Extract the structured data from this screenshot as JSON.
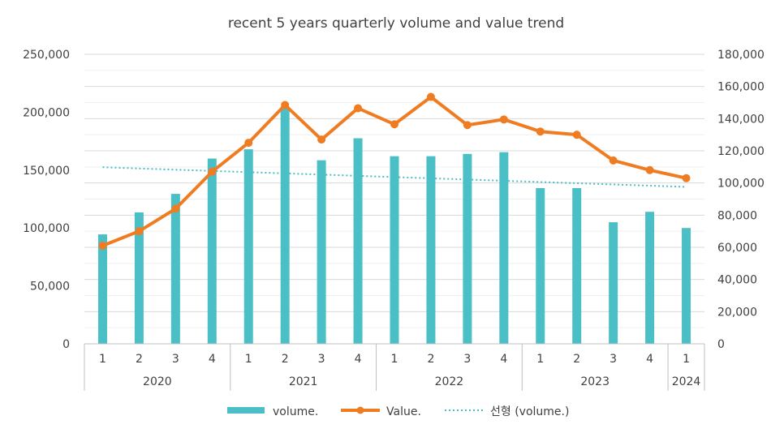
{
  "chart_data": {
    "type": "bar",
    "title": "recent 5 years quarterly volume and value trend",
    "categories": [
      "1",
      "2",
      "3",
      "4",
      "1",
      "2",
      "3",
      "4",
      "1",
      "2",
      "3",
      "4",
      "1",
      "2",
      "3",
      "4",
      "1"
    ],
    "category_groups": [
      {
        "label": "2020",
        "count": 4
      },
      {
        "label": "2021",
        "count": 4
      },
      {
        "label": "2022",
        "count": 4
      },
      {
        "label": "2023",
        "count": 4
      },
      {
        "label": "2024",
        "count": 1
      }
    ],
    "series": [
      {
        "name": "volume.",
        "kind": "bar",
        "axis": "left",
        "color": "#4bbfc6",
        "values": [
          94500,
          113500,
          129500,
          160000,
          168000,
          205000,
          158500,
          177500,
          162000,
          162000,
          164000,
          165500,
          134500,
          134500,
          105000,
          114000,
          100000
        ]
      },
      {
        "name": "Value.",
        "kind": "line",
        "axis": "right",
        "color": "#f07c22",
        "values": [
          61000,
          70000,
          84000,
          107000,
          125000,
          148500,
          127000,
          146500,
          136500,
          153500,
          136000,
          139500,
          132000,
          130000,
          114000,
          108000,
          103000
        ]
      },
      {
        "name": "선형 (volume.)",
        "kind": "trendline",
        "axis": "left",
        "color": "#4bbfc6",
        "start": 152500,
        "end": 135500
      }
    ],
    "y_left": {
      "min": 0,
      "max": 250000,
      "step": 50000,
      "tick_labels": [
        "0",
        "50,000",
        "100,000",
        "150,000",
        "200,000",
        "250,000"
      ]
    },
    "y_right": {
      "min": 0,
      "max": 180000,
      "step": 20000,
      "tick_labels": [
        "0",
        "20,000",
        "40,000",
        "60,000",
        "80,000",
        "100,000",
        "120,000",
        "140,000",
        "160,000",
        "180,000"
      ]
    },
    "legend": {
      "position": "bottom",
      "items": [
        "volume.",
        "Value.",
        "선형 (volume.)"
      ]
    },
    "grid": true
  }
}
